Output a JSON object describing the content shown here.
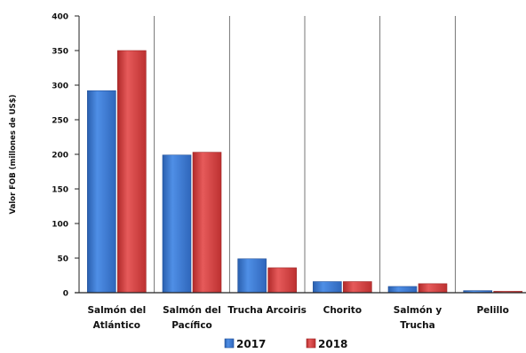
{
  "chart_data": {
    "type": "bar",
    "ylabel": "Valor FOB (millones de US$)",
    "xlabel": "",
    "ylim": [
      0,
      400
    ],
    "yticks": [
      0,
      50,
      100,
      150,
      200,
      250,
      300,
      350,
      400
    ],
    "grid": false,
    "legend_position": "bottom",
    "categories": [
      [
        "Salmón del",
        "Atlántico"
      ],
      [
        "Salmón del",
        "Pacífico"
      ],
      [
        "Trucha Arcoiris"
      ],
      [
        "Chorito"
      ],
      [
        "Salmón y",
        "Trucha"
      ],
      [
        "Pelillo"
      ]
    ],
    "series": [
      {
        "name": "2017",
        "color": "#3a78d0",
        "values": [
          292,
          199,
          49,
          16,
          9,
          3
        ]
      },
      {
        "name": "2018",
        "color": "#d63c3c",
        "values": [
          350,
          203,
          36,
          16,
          13,
          2
        ]
      }
    ]
  }
}
